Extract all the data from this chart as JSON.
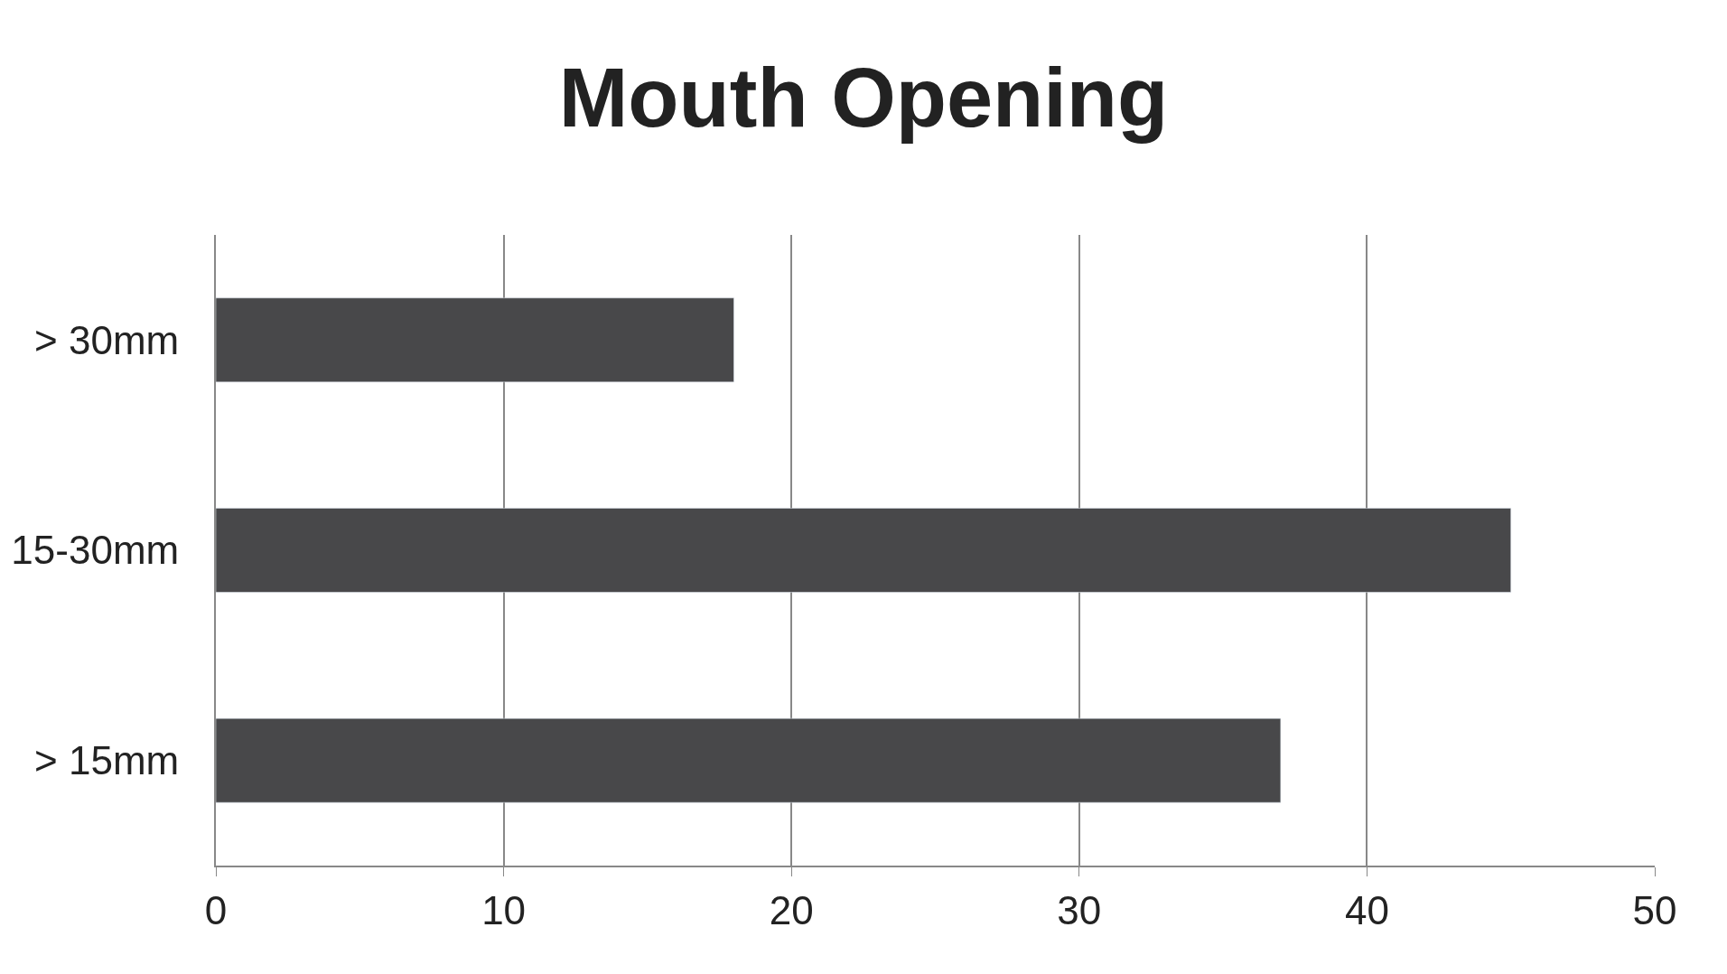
{
  "chart_data": {
    "type": "bar",
    "orientation": "horizontal",
    "title": "Mouth Opening",
    "categories": [
      "> 30mm",
      "15-30mm",
      "> 15mm"
    ],
    "values": [
      18,
      45,
      37
    ],
    "color": "#48484a",
    "xlim": [
      0,
      50
    ],
    "xticks": [
      0,
      10,
      20,
      30,
      40,
      50
    ],
    "grid": "x",
    "legend": false
  }
}
